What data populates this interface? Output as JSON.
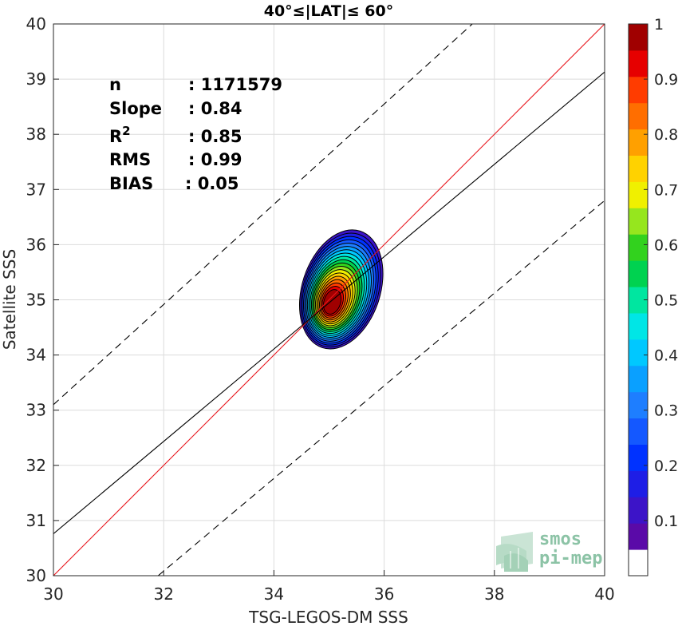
{
  "chart_data": {
    "type": "heatmap",
    "title": "40°≤|LAT|≤ 60°",
    "xlabel": "TSG-LEGOS-DM SSS",
    "ylabel": "Satellite SSS",
    "xlim": [
      30,
      40
    ],
    "ylim": [
      30,
      40
    ],
    "xticks": [
      30,
      32,
      34,
      36,
      38,
      40
    ],
    "yticks": [
      30,
      31,
      32,
      33,
      34,
      35,
      36,
      37,
      38,
      39,
      40
    ],
    "grid": true,
    "stats": [
      {
        "label": "n",
        "value": ": 1171579"
      },
      {
        "label": "Slope",
        "value": ": 0.84"
      },
      {
        "label": "R",
        "sup": "2",
        "value": ": 0.85"
      },
      {
        "label": "RMS",
        "value": ": 0.99"
      },
      {
        "label": "BIAS",
        "value": ": 0.05"
      }
    ],
    "lines": [
      {
        "name": "one-to-one",
        "color": "#e8141b",
        "style": "solid",
        "x": [
          30,
          40
        ],
        "y": [
          30,
          40
        ]
      },
      {
        "name": "regression",
        "color": "#000000",
        "style": "solid",
        "x": [
          30,
          40
        ],
        "y": [
          30.76,
          39.13
        ]
      },
      {
        "name": "upper-bound",
        "color": "#000000",
        "style": "dashed",
        "x": [
          30,
          37.6
        ],
        "y": [
          33.1,
          40
        ]
      },
      {
        "name": "lower-bound",
        "color": "#000000",
        "style": "dashed",
        "x": [
          31.9,
          40
        ],
        "y": [
          30,
          36.8
        ]
      }
    ],
    "density_center": {
      "x": 35.05,
      "y": 34.95,
      "peak": 1.0
    },
    "density_levels": [
      0.05,
      0.1,
      0.15,
      0.2,
      0.25,
      0.3,
      0.35,
      0.4,
      0.45,
      0.5,
      0.55,
      0.6,
      0.65,
      0.7,
      0.75,
      0.8,
      0.85,
      0.9,
      0.95
    ],
    "colorbar": {
      "range": [
        0,
        1
      ],
      "ticks": [
        "0.1",
        "0.2",
        "0.3",
        "0.4",
        "0.5",
        "0.6",
        "0.7",
        "0.8",
        "0.9",
        "1"
      ],
      "tick_values": [
        0.1,
        0.2,
        0.3,
        0.4,
        0.5,
        0.6,
        0.7,
        0.8,
        0.9,
        1.0
      ],
      "colors": [
        "#ffffff",
        "#5a0aa8",
        "#3c14c8",
        "#1e1ee6",
        "#0032ff",
        "#1458ff",
        "#1e7eff",
        "#0aa0ff",
        "#00c8ff",
        "#00e6e6",
        "#00e6a0",
        "#00d250",
        "#32d21e",
        "#96e61e",
        "#f0f000",
        "#ffd200",
        "#ffa000",
        "#ff6e00",
        "#ff3c00",
        "#e60000",
        "#a00000"
      ]
    }
  },
  "logo": {
    "line1": "smos",
    "line2": "pi-mep"
  }
}
